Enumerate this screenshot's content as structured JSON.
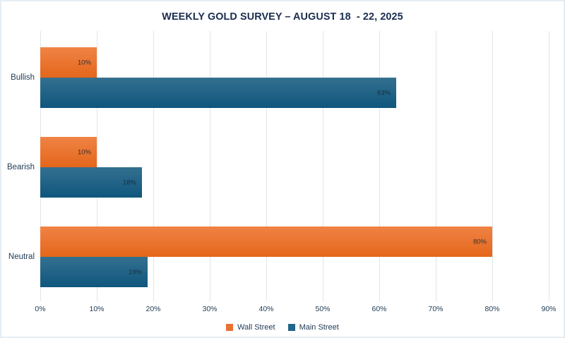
{
  "chart_data": {
    "type": "bar",
    "orientation": "horizontal",
    "title": "WEEKLY GOLD SURVEY – AUGUST 18  - 22, 2025",
    "categories": [
      "Bullish",
      "Bearish",
      "Neutral"
    ],
    "series": [
      {
        "name": "Wall Street",
        "color": "#e97132",
        "gradient_top": "#f08345",
        "gradient_bottom": "#e4661b",
        "values": [
          10,
          10,
          80
        ]
      },
      {
        "name": "Main Street",
        "color": "#21658a",
        "gradient_top": "#34708f",
        "gradient_bottom": "#0f567e",
        "values": [
          63,
          18,
          19
        ]
      }
    ],
    "data_labels": [
      [
        "10%",
        "10%",
        "80%"
      ],
      [
        "63%",
        "18%",
        "19%"
      ]
    ],
    "xlabel": "",
    "ylabel": "",
    "xlim": [
      0,
      90
    ],
    "x_tick_labels": [
      "0%",
      "10%",
      "20%",
      "30%",
      "40%",
      "50%",
      "60%",
      "70%",
      "80%",
      "90%"
    ],
    "x_ticks": [
      0,
      10,
      20,
      30,
      40,
      50,
      60,
      70,
      80,
      90
    ],
    "grid": "vertical",
    "gridline_color": "#dfe6ec",
    "legend_position": "bottom",
    "title_color": "#1b2d50",
    "text_color": "#223c55",
    "background": "#ffffff"
  }
}
